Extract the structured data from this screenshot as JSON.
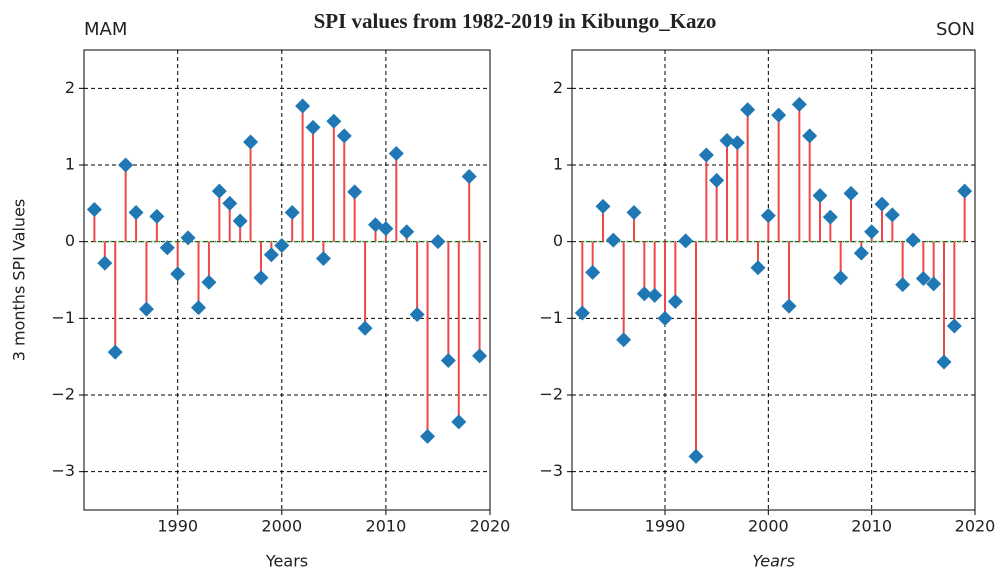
{
  "title": "SPI values from 1982-2019 in Kibungo_Kazo",
  "chart_data": [
    {
      "type": "stem",
      "title": "MAM",
      "title_align": "left",
      "xlabel": "Years",
      "xlabel_style": "normal",
      "ylabel": "3 months SPI Values",
      "x": [
        1982,
        1983,
        1984,
        1985,
        1986,
        1987,
        1988,
        1989,
        1990,
        1991,
        1992,
        1993,
        1994,
        1995,
        1996,
        1997,
        1998,
        1999,
        2000,
        2001,
        2002,
        2003,
        2004,
        2005,
        2006,
        2007,
        2008,
        2009,
        2010,
        2011,
        2012,
        2013,
        2014,
        2015,
        2016,
        2017,
        2018,
        2019
      ],
      "values": [
        0.42,
        -0.28,
        -1.44,
        1.0,
        0.38,
        -0.88,
        0.33,
        -0.08,
        -0.42,
        0.05,
        -0.86,
        -0.53,
        0.66,
        0.5,
        0.27,
        1.3,
        -0.47,
        -0.17,
        -0.05,
        0.38,
        1.77,
        1.49,
        -0.22,
        1.57,
        1.38,
        0.65,
        -1.13,
        0.22,
        0.17,
        1.15,
        0.13,
        -0.95,
        -2.54,
        0.0,
        -1.55,
        -2.35,
        0.85,
        -1.49
      ],
      "xlim": [
        1981,
        2020
      ],
      "ylim": [
        -3.5,
        2.5
      ],
      "xticks": [
        1990,
        2000,
        2010,
        2020
      ],
      "yticks": [
        {
          "value": -3,
          "label": "−3"
        },
        {
          "value": -2,
          "label": "−2"
        },
        {
          "value": -1,
          "label": "−1"
        },
        0,
        1,
        2
      ],
      "grid": true,
      "stem_color": "#f04848",
      "marker_color": "#1f77b4",
      "baseline_color": "#2ca02c"
    },
    {
      "type": "stem",
      "title": "SON",
      "title_align": "right",
      "xlabel": "Years",
      "xlabel_style": "italic",
      "x": [
        1982,
        1983,
        1984,
        1985,
        1986,
        1987,
        1988,
        1989,
        1990,
        1991,
        1992,
        1993,
        1994,
        1995,
        1996,
        1997,
        1998,
        1999,
        2000,
        2001,
        2002,
        2003,
        2004,
        2005,
        2006,
        2007,
        2008,
        2009,
        2010,
        2011,
        2012,
        2013,
        2014,
        2015,
        2016,
        2017,
        2018,
        2019
      ],
      "values": [
        -0.93,
        -0.4,
        0.46,
        0.02,
        -1.28,
        0.38,
        -0.68,
        -0.7,
        -1.0,
        -0.78,
        0.01,
        -2.8,
        1.13,
        0.8,
        1.32,
        1.29,
        1.72,
        -0.34,
        0.34,
        1.65,
        -0.84,
        1.79,
        1.38,
        0.6,
        0.32,
        -0.47,
        0.63,
        -0.15,
        0.13,
        0.49,
        0.35,
        -0.56,
        0.02,
        -0.48,
        -0.55,
        -1.57,
        -1.1,
        0.66
      ],
      "xlim": [
        1981,
        2020
      ],
      "ylim": [
        -3.5,
        2.5
      ],
      "xticks": [
        1990,
        2000,
        2010,
        2020
      ],
      "yticks": [
        {
          "value": -3,
          "label": "−3"
        },
        {
          "value": -2,
          "label": "−2"
        },
        {
          "value": -1,
          "label": "−1"
        },
        0,
        1,
        2
      ],
      "grid": true,
      "stem_color": "#f04848",
      "marker_color": "#1f77b4",
      "baseline_color": "#2ca02c"
    }
  ]
}
